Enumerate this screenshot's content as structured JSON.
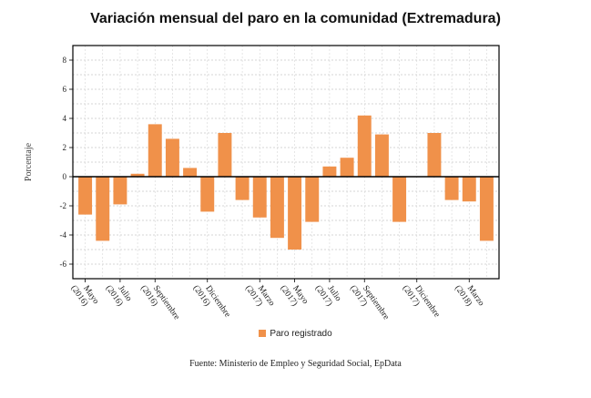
{
  "chart_data": {
    "type": "bar",
    "title": "Variación mensual del paro en la comunidad (Extremadura)",
    "ylabel": "Porcentaje",
    "xlabel": "",
    "ylim": [
      -7,
      9
    ],
    "yticks": [
      -6,
      -4,
      -2,
      0,
      2,
      4,
      6,
      8
    ],
    "grid": true,
    "legend_position": "bottom",
    "bar_color": "#f0914a",
    "categories": [
      "2016-05",
      "2016-06",
      "2016-07",
      "2016-08",
      "2016-09",
      "2016-10",
      "2016-11",
      "2016-12",
      "2017-01",
      "2017-02",
      "2017-03",
      "2017-04",
      "2017-05",
      "2017-06",
      "2017-07",
      "2017-08",
      "2017-09",
      "2017-10",
      "2017-11",
      "2017-12",
      "2018-01",
      "2018-02",
      "2018-03",
      "2018-04"
    ],
    "series": [
      {
        "name": "Paro registrado",
        "values": [
          -2.6,
          -4.4,
          -1.9,
          0.2,
          3.6,
          2.6,
          0.6,
          -2.4,
          3.0,
          -1.6,
          -2.8,
          -4.2,
          -5.0,
          -3.1,
          0.7,
          1.3,
          4.2,
          2.9,
          -3.1,
          0.0,
          3.0,
          -1.6,
          -1.7,
          -4.4
        ]
      }
    ],
    "x_tick_labels": [
      {
        "index": 0,
        "line1": "Mayo",
        "line2": "(2016)"
      },
      {
        "index": 2,
        "line1": "Julio",
        "line2": "(2016)"
      },
      {
        "index": 4,
        "line1": "Septiembre",
        "line2": "(2016)"
      },
      {
        "index": 7,
        "line1": "Diciembre",
        "line2": "(2016)"
      },
      {
        "index": 10,
        "line1": "Marzo",
        "line2": "(2017)"
      },
      {
        "index": 12,
        "line1": "Mayo",
        "line2": "(2017)"
      },
      {
        "index": 14,
        "line1": "Julio",
        "line2": "(2017)"
      },
      {
        "index": 16,
        "line1": "Septiembre",
        "line2": "(2017)"
      },
      {
        "index": 19,
        "line1": "Diciembre",
        "line2": "(2017)"
      },
      {
        "index": 22,
        "line1": "Marzo",
        "line2": "(2018)"
      }
    ],
    "source": "Fuente: Ministerio de Empleo y Seguridad Social, EpData"
  }
}
